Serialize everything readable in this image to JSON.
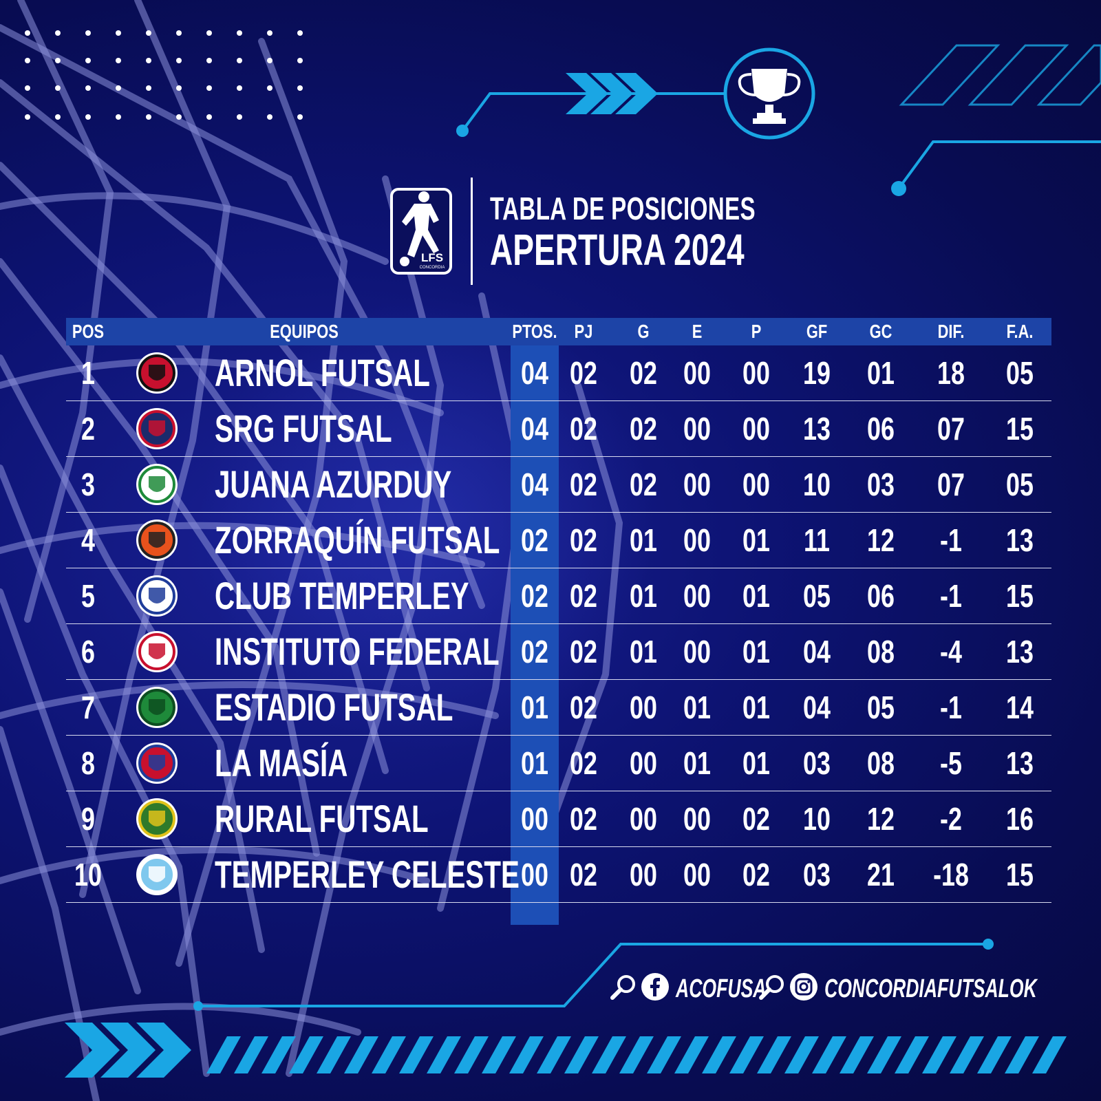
{
  "colors": {
    "background": "#0b0f5c",
    "accent": "#1aa6e4",
    "header_bar": "#1d44a7",
    "points_column": "#1d4fb6"
  },
  "league_logo": {
    "icon": "player-kicking-icon",
    "text": "LFS",
    "subtext": "CONCORDIA"
  },
  "title": {
    "line1": "TABLA DE POSICIONES",
    "line2": "APERTURA 2024"
  },
  "table": {
    "headers": {
      "pos": "POS",
      "team": "EQUIPOS",
      "pts": "PTOS.",
      "pj": "PJ",
      "g": "G",
      "e": "E",
      "p": "P",
      "gf": "GF",
      "gc": "GC",
      "dif": "DIF.",
      "fa": "F.A."
    },
    "rows": [
      {
        "pos": "1",
        "team": "ARNOL FUTSAL",
        "pts": "04",
        "pj": "02",
        "g": "02",
        "e": "00",
        "p": "00",
        "gf": "19",
        "gc": "01",
        "dif": "18",
        "fa": "05",
        "crest_colors": [
          "#c8102e",
          "#111111"
        ]
      },
      {
        "pos": "2",
        "team": "SRG FUTSAL",
        "pts": "04",
        "pj": "02",
        "g": "02",
        "e": "00",
        "p": "00",
        "gf": "13",
        "gc": "06",
        "dif": "07",
        "fa": "15",
        "crest_colors": [
          "#1c2a6b",
          "#c8102e"
        ]
      },
      {
        "pos": "3",
        "team": "JUANA AZURDUY",
        "pts": "04",
        "pj": "02",
        "g": "02",
        "e": "00",
        "p": "00",
        "gf": "10",
        "gc": "03",
        "dif": "07",
        "fa": "05",
        "crest_colors": [
          "#ffffff",
          "#1e8a3a"
        ]
      },
      {
        "pos": "4",
        "team": "ZORRAQUÍN FUTSAL",
        "pts": "02",
        "pj": "02",
        "g": "01",
        "e": "00",
        "p": "01",
        "gf": "11",
        "gc": "12",
        "dif": "-1",
        "fa": "13",
        "crest_colors": [
          "#e8521d",
          "#222222"
        ]
      },
      {
        "pos": "5",
        "team": "CLUB TEMPERLEY",
        "pts": "02",
        "pj": "02",
        "g": "01",
        "e": "00",
        "p": "01",
        "gf": "05",
        "gc": "06",
        "dif": "-1",
        "fa": "15",
        "crest_colors": [
          "#ffffff",
          "#1f3c9a"
        ]
      },
      {
        "pos": "6",
        "team": "INSTITUTO FEDERAL",
        "pts": "02",
        "pj": "02",
        "g": "01",
        "e": "00",
        "p": "01",
        "gf": "04",
        "gc": "08",
        "dif": "-4",
        "fa": "13",
        "crest_colors": [
          "#ffffff",
          "#c8102e"
        ]
      },
      {
        "pos": "7",
        "team": "ESTADIO FUTSAL",
        "pts": "01",
        "pj": "02",
        "g": "00",
        "e": "01",
        "p": "01",
        "gf": "04",
        "gc": "05",
        "dif": "-1",
        "fa": "14",
        "crest_colors": [
          "#1e8a3a",
          "#0d4d20"
        ]
      },
      {
        "pos": "8",
        "team": "LA MASÍA",
        "pts": "01",
        "pj": "02",
        "g": "00",
        "e": "01",
        "p": "01",
        "gf": "03",
        "gc": "08",
        "dif": "-5",
        "fa": "13",
        "crest_colors": [
          "#c8102e",
          "#1f3c9a"
        ]
      },
      {
        "pos": "9",
        "team": "RURAL FUTSAL",
        "pts": "00",
        "pj": "02",
        "g": "00",
        "e": "00",
        "p": "02",
        "gf": "10",
        "gc": "12",
        "dif": "-2",
        "fa": "16",
        "crest_colors": [
          "#2f7a2a",
          "#e0c21a"
        ]
      },
      {
        "pos": "10",
        "team": "TEMPERLEY CELESTE",
        "pts": "00",
        "pj": "02",
        "g": "00",
        "e": "00",
        "p": "02",
        "gf": "03",
        "gc": "21",
        "dif": "-18",
        "fa": "15",
        "crest_colors": [
          "#7fc8ee",
          "#ffffff"
        ]
      }
    ]
  },
  "social": {
    "facebook": {
      "icon": "facebook-icon",
      "search_icon": "search-icon",
      "handle": "ACOFUSA"
    },
    "instagram": {
      "icon": "instagram-icon",
      "search_icon": "search-icon",
      "handle": "CONCORDIAFUTSALOK"
    }
  }
}
